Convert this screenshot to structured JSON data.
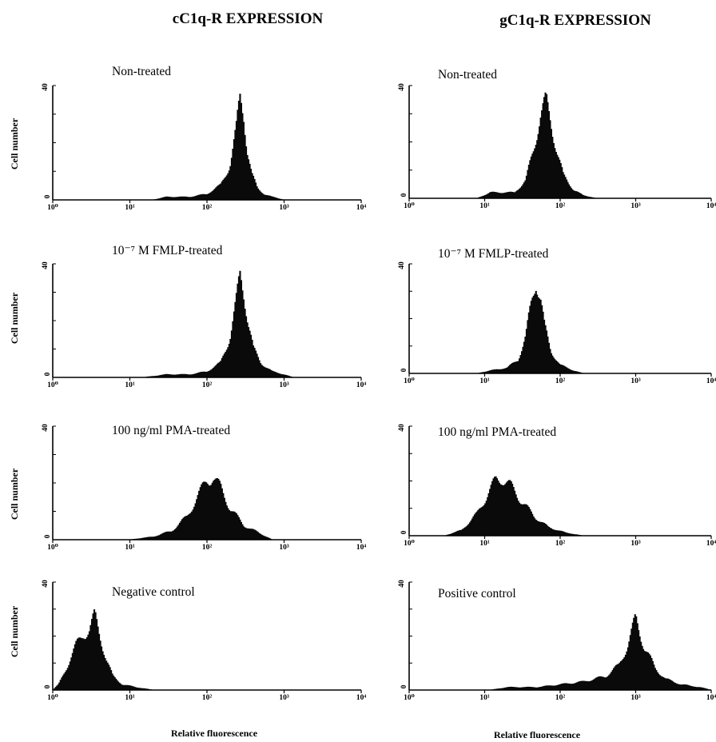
{
  "figure": {
    "columns": [
      "cC1q-R EXPRESSION",
      "gC1q-R EXPRESSION"
    ],
    "ylabel": "Cell number",
    "xlabel": "Relative fluorescence",
    "ymax_label": "40",
    "ymin_label": "0"
  },
  "chart_data": [
    {
      "type": "area",
      "title": "Non-treated",
      "column": "cC1q-R EXPRESSION",
      "xlabel": "Relative fluorescence",
      "ylabel": "Cell number",
      "xscale": "log",
      "xlim": [
        1,
        10000
      ],
      "ylim": [
        0,
        40
      ],
      "xticks": [
        "10⁰",
        "10¹",
        "10²",
        "10³",
        "10⁴"
      ],
      "yticks": [
        "0",
        "40"
      ],
      "x": [
        1,
        20,
        30,
        60,
        100,
        150,
        200,
        240,
        270,
        300,
        330,
        380,
        450,
        550,
        700,
        1000,
        10000
      ],
      "y": [
        0,
        0,
        1,
        1,
        2,
        5,
        12,
        24,
        36,
        30,
        18,
        9,
        4,
        2,
        1,
        0,
        0
      ]
    },
    {
      "type": "area",
      "title": "Non-treated",
      "column": "gC1q-R EXPRESSION",
      "xlabel": "Relative fluorescence",
      "ylabel": "Cell number",
      "xscale": "log",
      "xlim": [
        1,
        10000
      ],
      "ylim": [
        0,
        40
      ],
      "xticks": [
        "10⁰",
        "10¹",
        "10²",
        "10³",
        "10⁴"
      ],
      "yticks": [
        "0",
        "40"
      ],
      "x": [
        1,
        8,
        12,
        25,
        35,
        45,
        55,
        65,
        75,
        90,
        110,
        150,
        200,
        300,
        10000
      ],
      "y": [
        0,
        0,
        2,
        2,
        6,
        18,
        29,
        34,
        27,
        17,
        8,
        3,
        1,
        0,
        0
      ]
    },
    {
      "type": "area",
      "title": "10⁻⁷ M FMLP-treated",
      "column": "cC1q-R EXPRESSION",
      "xlabel": "Relative fluorescence",
      "ylabel": "Cell number",
      "xscale": "log",
      "xlim": [
        1,
        10000
      ],
      "ylim": [
        0,
        40
      ],
      "xticks": [
        "10⁰",
        "10¹",
        "10²",
        "10³",
        "10⁴"
      ],
      "yticks": [
        "0",
        "40"
      ],
      "x": [
        1,
        15,
        30,
        60,
        100,
        150,
        200,
        240,
        270,
        300,
        340,
        400,
        500,
        700,
        1000,
        1300,
        10000
      ],
      "y": [
        0,
        0,
        1,
        1,
        2,
        5,
        14,
        26,
        36,
        30,
        20,
        10,
        5,
        2,
        1,
        0,
        0
      ]
    },
    {
      "type": "area",
      "title": "10⁻⁷ M FMLP-treated",
      "column": "gC1q-R EXPRESSION",
      "xlabel": "Relative fluorescence",
      "ylabel": "Cell number",
      "xscale": "log",
      "xlim": [
        1,
        10000
      ],
      "ylim": [
        0,
        40
      ],
      "xticks": [
        "10⁰",
        "10¹",
        "10²",
        "10³",
        "10⁴"
      ],
      "yticks": [
        "0",
        "40"
      ],
      "x": [
        1,
        8,
        12,
        20,
        28,
        35,
        42,
        48,
        55,
        62,
        75,
        100,
        150,
        200,
        10000
      ],
      "y": [
        0,
        0,
        1,
        2,
        5,
        13,
        26,
        34,
        28,
        17,
        8,
        3,
        1,
        0,
        0
      ]
    },
    {
      "type": "area",
      "title": "100 ng/ml PMA-treated",
      "column": "cC1q-R EXPRESSION",
      "xlabel": "Relative fluorescence",
      "ylabel": "Cell number",
      "xscale": "log",
      "xlim": [
        1,
        10000
      ],
      "ylim": [
        0,
        40
      ],
      "xticks": [
        "10⁰",
        "10¹",
        "10²",
        "10³",
        "10⁴"
      ],
      "yticks": [
        "0",
        "40"
      ],
      "x": [
        1,
        10,
        20,
        35,
        55,
        80,
        100,
        120,
        150,
        200,
        300,
        500,
        700,
        10000
      ],
      "y": [
        0,
        0,
        1,
        3,
        8,
        16,
        21,
        22,
        18,
        11,
        5,
        2,
        0,
        0
      ]
    },
    {
      "type": "area",
      "title": "100 ng/ml PMA-treated",
      "column": "gC1q-R EXPRESSION",
      "xlabel": "Relative fluorescence",
      "ylabel": "Cell number",
      "xscale": "log",
      "xlim": [
        1,
        10000
      ],
      "ylim": [
        0,
        40
      ],
      "xticks": [
        "10⁰",
        "10¹",
        "10²",
        "10³",
        "10⁴"
      ],
      "yticks": [
        "0",
        "40"
      ],
      "x": [
        1,
        3,
        5,
        8,
        11,
        14,
        17,
        22,
        30,
        45,
        70,
        120,
        200,
        10000
      ],
      "y": [
        0,
        0,
        2,
        8,
        15,
        20,
        21,
        18,
        13,
        7,
        3,
        1,
        0,
        0
      ]
    },
    {
      "type": "area",
      "title": "Negative control",
      "column": "cC1q-R EXPRESSION",
      "xlabel": "Relative fluorescence",
      "ylabel": "Cell number",
      "xscale": "log",
      "xlim": [
        1,
        10000
      ],
      "ylim": [
        0,
        40
      ],
      "xticks": [
        "10⁰",
        "10¹",
        "10²",
        "10³",
        "10⁴"
      ],
      "yticks": [
        "0",
        "40"
      ],
      "x": [
        1,
        1.2,
        1.5,
        2,
        2.5,
        3,
        3.5,
        4,
        5,
        6,
        8,
        12,
        20,
        10000
      ],
      "y": [
        0,
        2,
        8,
        16,
        21,
        22,
        27,
        21,
        11,
        5,
        2,
        1,
        0,
        0
      ]
    },
    {
      "type": "area",
      "title": "Positive control",
      "column": "gC1q-R EXPRESSION",
      "xlabel": "Relative fluorescence",
      "ylabel": "Cell number",
      "xscale": "log",
      "xlim": [
        1,
        10000
      ],
      "ylim": [
        0,
        40
      ],
      "xticks": [
        "10⁰",
        "10¹",
        "10²",
        "10³",
        "10⁴"
      ],
      "yticks": [
        "0",
        "40"
      ],
      "x": [
        1,
        12,
        20,
        50,
        100,
        200,
        400,
        600,
        800,
        1000,
        1300,
        1800,
        2500,
        4000,
        7000,
        10000
      ],
      "y": [
        0,
        0,
        1,
        1,
        2,
        3,
        5,
        9,
        17,
        26,
        16,
        8,
        4,
        2,
        1,
        0
      ]
    }
  ]
}
